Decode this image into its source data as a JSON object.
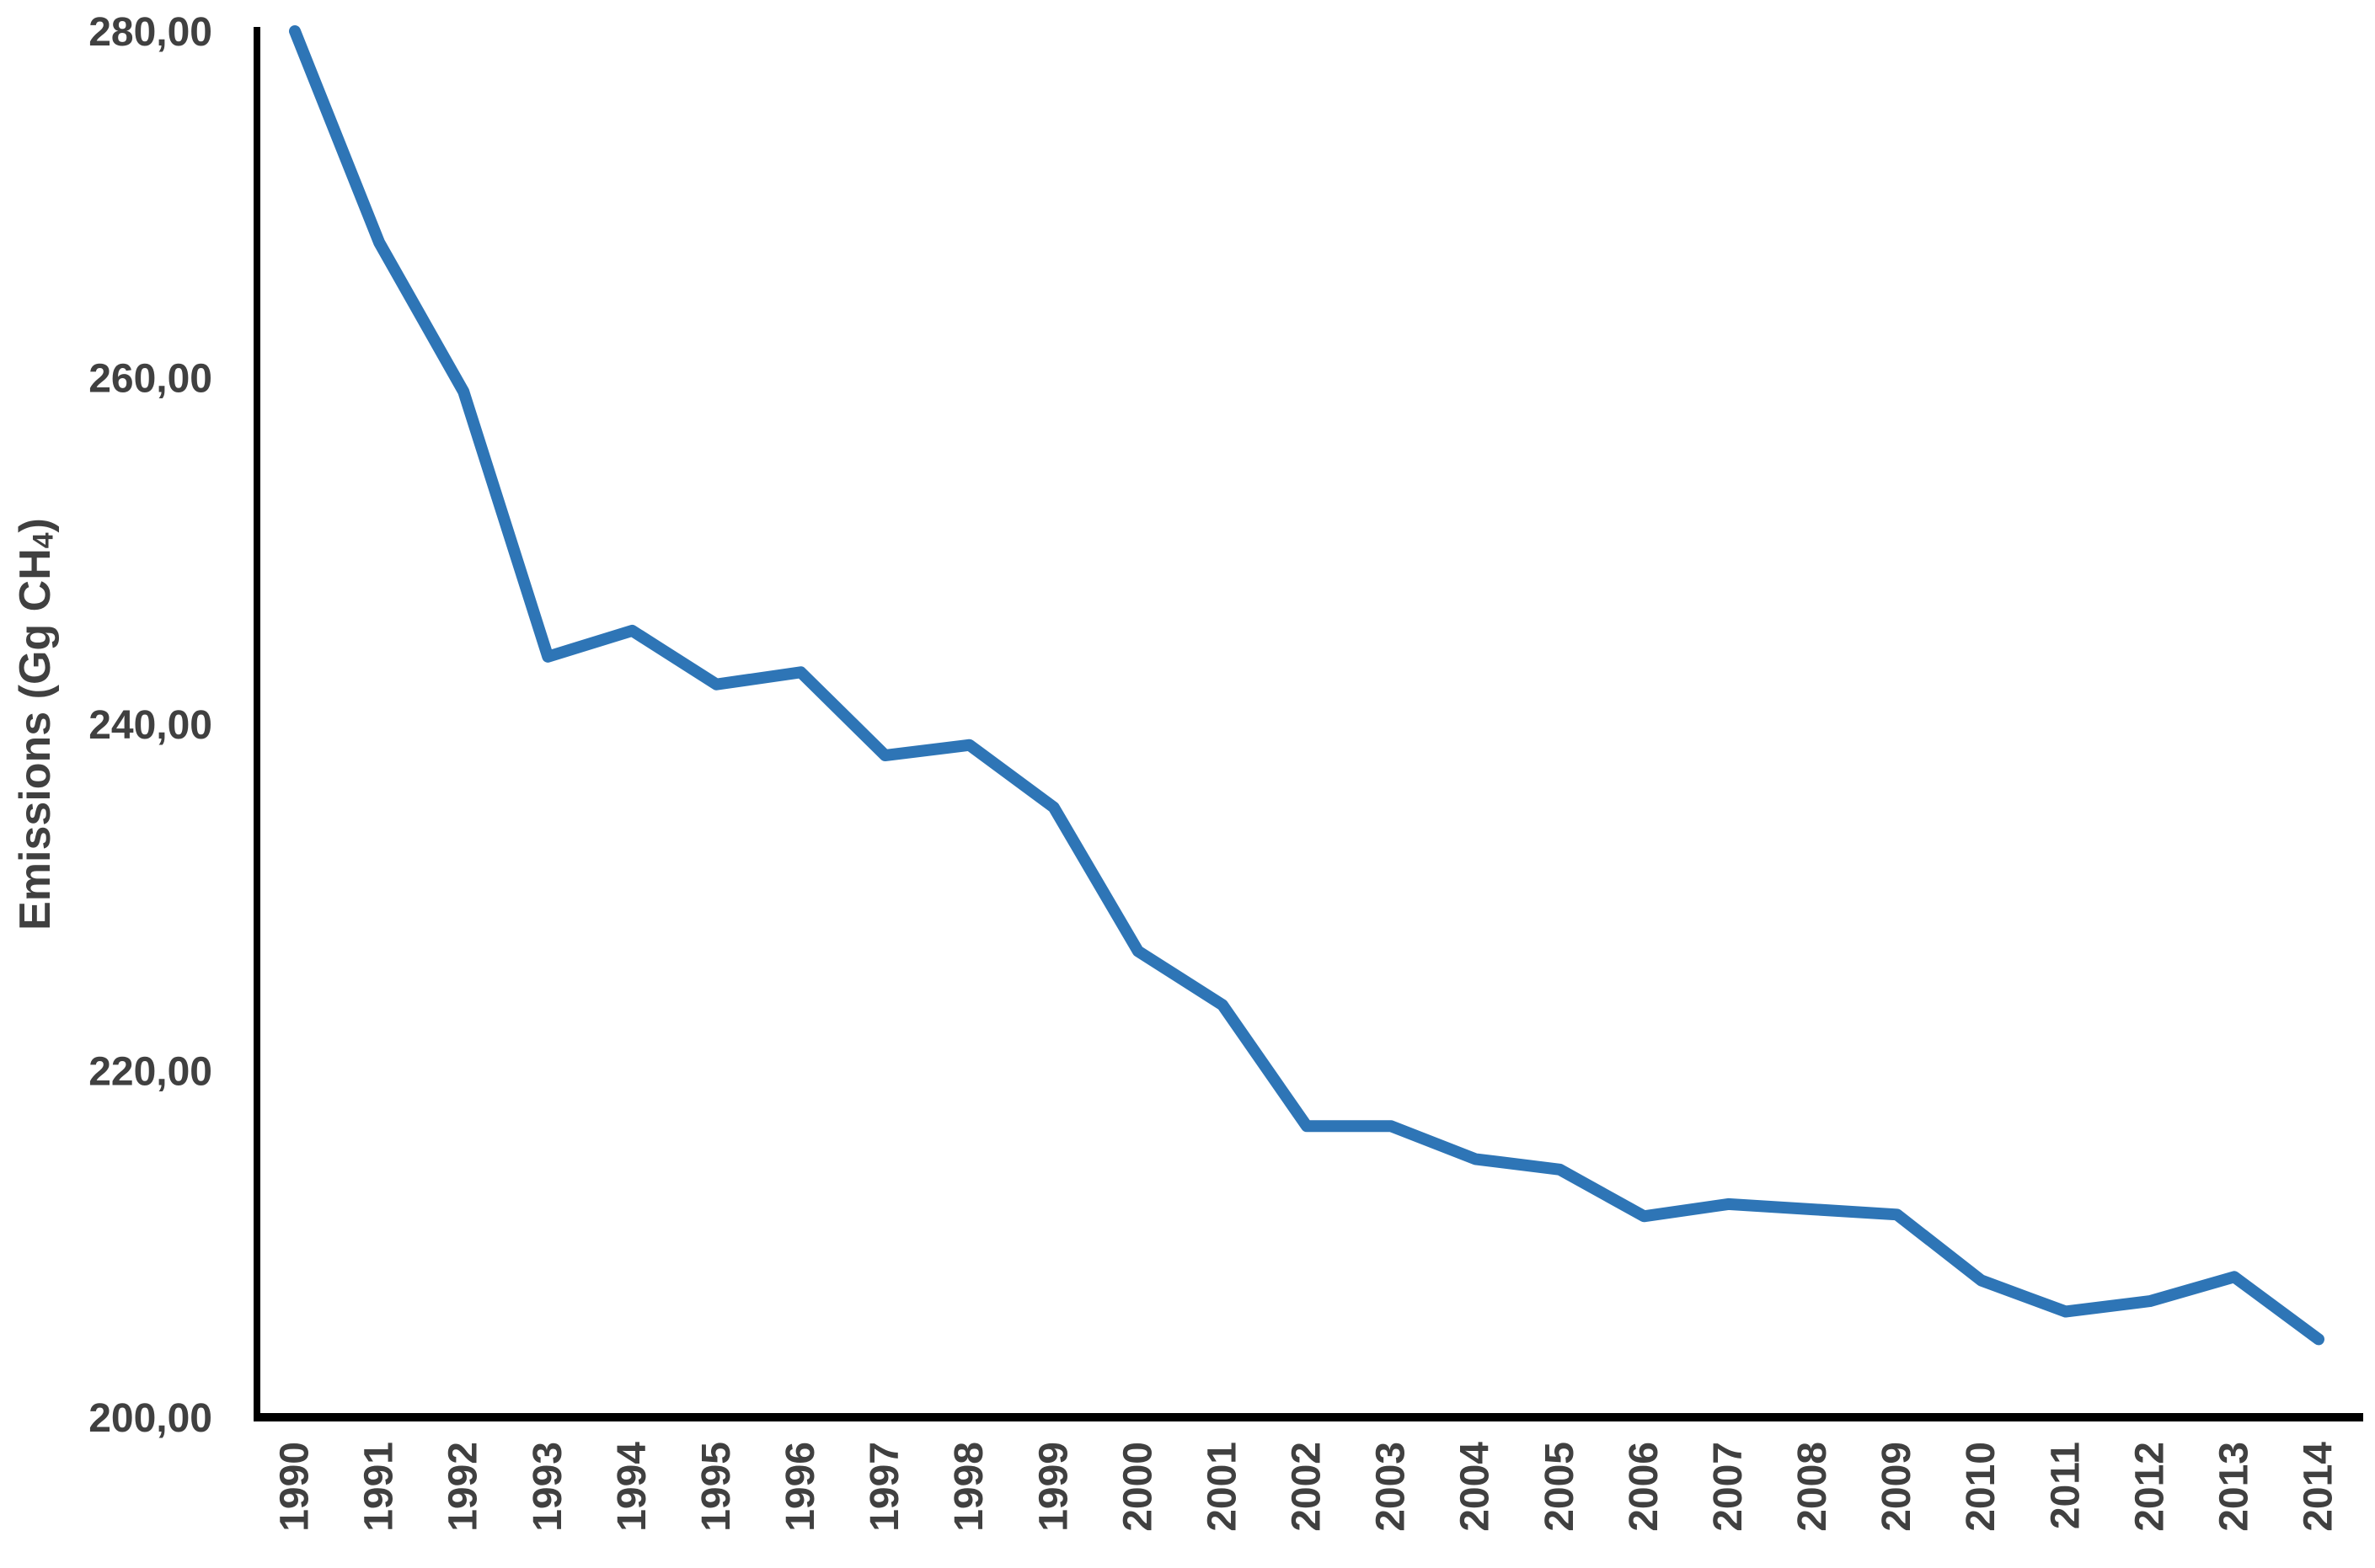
{
  "chart_data": {
    "type": "line",
    "title": "",
    "x": [
      1990,
      1991,
      1992,
      1993,
      1994,
      1995,
      1996,
      1997,
      1998,
      1999,
      2000,
      2001,
      2002,
      2003,
      2004,
      2005,
      2006,
      2007,
      2008,
      2009,
      2010,
      2011,
      2012,
      2013,
      2014
    ],
    "x_tick_labels": [
      "1990",
      "1991",
      "1992",
      "1993",
      "1994",
      "1995",
      "1996",
      "1997",
      "1998",
      "1999",
      "2000",
      "2001",
      "2002",
      "2003",
      "2004",
      "2005",
      "2006",
      "2007",
      "2008",
      "2009",
      "2010",
      "2011",
      "2012",
      "2013",
      "2014"
    ],
    "series": [
      {
        "name": "Emissions (Gg CH4)",
        "values": [
          280.0,
          267.8,
          259.2,
          243.9,
          245.4,
          242.3,
          243.0,
          238.2,
          238.8,
          235.2,
          226.9,
          223.8,
          216.8,
          216.8,
          214.9,
          214.3,
          211.6,
          212.3,
          212.0,
          211.7,
          207.9,
          206.1,
          206.7,
          208.1,
          204.5
        ]
      }
    ],
    "xlabel": "",
    "ylabel": "Emissions (Gg CH4)",
    "ylabel_parts": {
      "prefix": "Emissions (Gg CH",
      "sub": "4",
      "suffix": ")"
    },
    "ylim": [
      200,
      280
    ],
    "y_tick_values": [
      200,
      220,
      240,
      260,
      280
    ],
    "y_tick_labels": [
      "200,00",
      "220,00",
      "240,00",
      "260,00",
      "280,00"
    ],
    "decimal_separator": ",",
    "grid": false,
    "legend": "none",
    "marker": "none",
    "colors": {
      "line": "#2E75B6",
      "axis": "#000000",
      "tick_text": "#404040",
      "background": "#FFFFFF"
    }
  }
}
